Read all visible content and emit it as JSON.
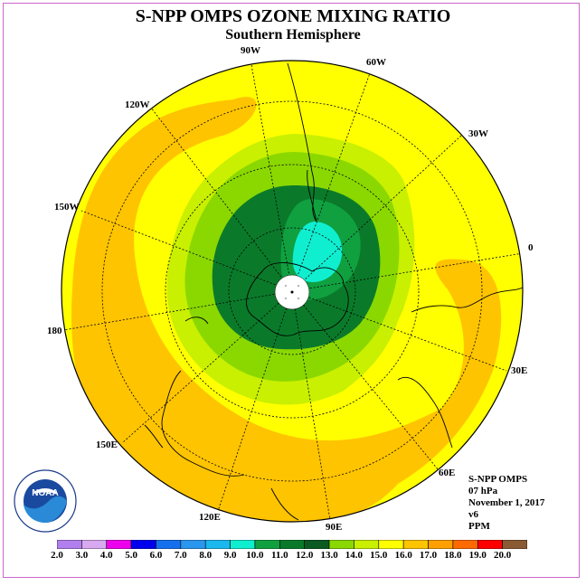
{
  "title": "S-NPP OMPS OZONE MIXING RATIO",
  "subtitle": "Southern Hemisphere",
  "longitude_labels": {
    "w90": "90W",
    "w60": "60W",
    "w120": "120W",
    "w30": "30W",
    "w150": "150W",
    "e0": "0",
    "e180": "180",
    "e30": "30E",
    "e150": "150E",
    "e60": "60E",
    "e120": "120E",
    "e90": "90E"
  },
  "info": {
    "instrument": "S-NPP OMPS",
    "level": "07 hPa",
    "date": "November 1, 2017",
    "version": "v6",
    "units": "PPM"
  },
  "colorbar": {
    "colors": [
      "#b27fef",
      "#d8a8f0",
      "#ee00ee",
      "#0000ee",
      "#1670ee",
      "#2a96ee",
      "#1ab8ee",
      "#10eed0",
      "#10a040",
      "#0a7a2a",
      "#0a5a22",
      "#8ad800",
      "#c8f000",
      "#ffff00",
      "#ffc400",
      "#ffa000",
      "#ff6a00",
      "#ff0000",
      "#8a5a32"
    ],
    "tick_labels": [
      "2.0",
      "3.0",
      "4.0",
      "5.0",
      "6.0",
      "7.0",
      "8.0",
      "9.0",
      "10.0",
      "11.0",
      "12.0",
      "13.0",
      "14.0",
      "15.0",
      "16.0",
      "17.0",
      "18.0",
      "19.0",
      "20.0"
    ]
  },
  "logo": {
    "text": "NOAA"
  }
}
